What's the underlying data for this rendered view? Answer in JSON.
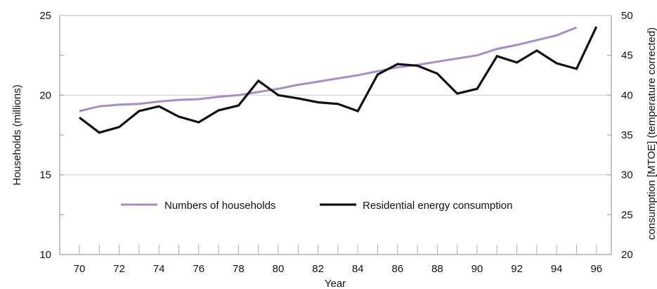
{
  "chart_data": {
    "type": "line",
    "x": [
      70,
      71,
      72,
      73,
      74,
      75,
      76,
      77,
      78,
      79,
      80,
      81,
      82,
      83,
      84,
      85,
      86,
      87,
      88,
      89,
      90,
      91,
      92,
      93,
      94,
      95,
      96
    ],
    "xticks": [
      "70",
      "72",
      "74",
      "76",
      "78",
      "80",
      "82",
      "84",
      "86",
      "88",
      "90",
      "92",
      "94",
      "96"
    ],
    "xlabel": "Year",
    "ylabel_left": "Households (millions)",
    "ylabel_right": "consumption [MTOE] (temperature corrected)",
    "ylim_left": [
      10,
      25
    ],
    "ylim_right": [
      20,
      50
    ],
    "yticks_left": [
      "10",
      "15",
      "20",
      "25"
    ],
    "yticks_right": [
      "20",
      "25",
      "30",
      "35",
      "40",
      "45",
      "50"
    ],
    "grid": "horizontal",
    "legend_position": "middle",
    "series": [
      {
        "name": "Numbers of households",
        "axis": "left",
        "color": "#a98bc6",
        "values": [
          19.0,
          19.3,
          19.4,
          19.45,
          19.6,
          19.7,
          19.75,
          19.9,
          20.0,
          20.2,
          20.4,
          20.65,
          20.85,
          21.05,
          21.25,
          21.5,
          21.75,
          21.9,
          22.1,
          22.3,
          22.5,
          22.9,
          23.15,
          23.45,
          23.75,
          24.25,
          null
        ]
      },
      {
        "name": "Residential energy consumption",
        "axis": "right",
        "color": "#111111",
        "values": [
          37.2,
          35.3,
          36.0,
          38.0,
          38.6,
          37.3,
          36.6,
          38.1,
          38.7,
          41.8,
          40.0,
          39.6,
          39.1,
          38.9,
          38.0,
          42.6,
          43.9,
          43.7,
          42.7,
          40.2,
          40.8,
          44.9,
          44.1,
          45.6,
          44.0,
          43.3,
          48.6
        ]
      }
    ]
  }
}
